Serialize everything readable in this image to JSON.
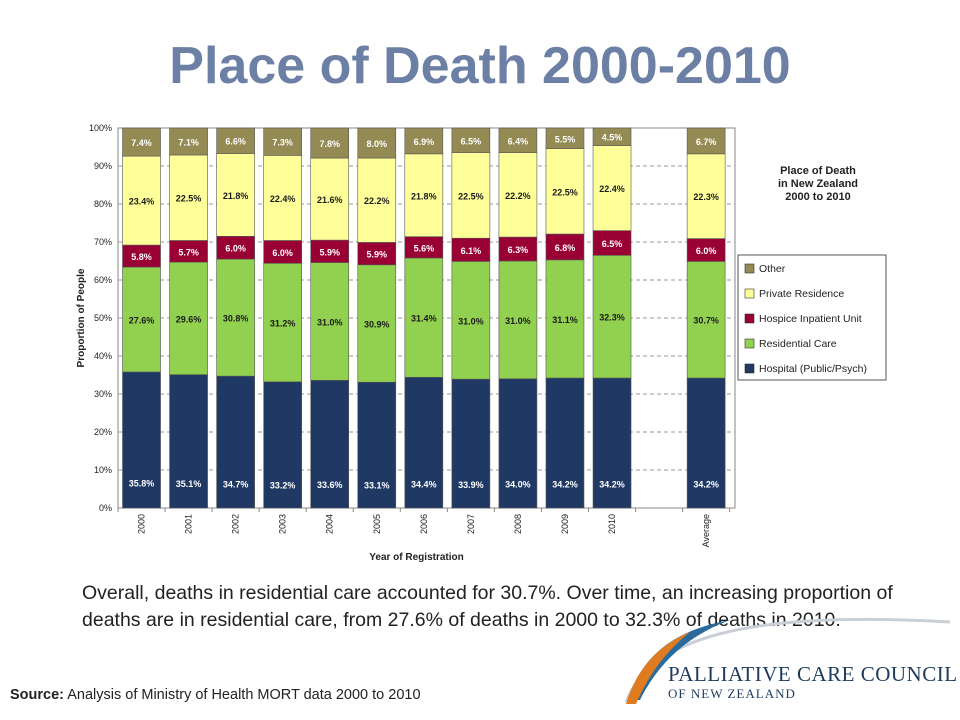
{
  "slide": {
    "title": "Place of Death 2000-2010",
    "caption": "Overall, deaths in residential care accounted for 30.7%. Over time, an increasing proportion of deaths are in residential care, from 27.6% of deaths in 2000 to 32.3% of deaths in 2010.",
    "source_label": "Source:",
    "source_text": " Analysis of Ministry of Health MORT data 2000 to 2010",
    "logo_line1": "PALLIATIVE CARE COUNCIL",
    "logo_line2": "OF NEW ZEALAND"
  },
  "chart_data": {
    "type": "bar",
    "stacked": true,
    "title": "Place of Death\nin New Zealand\n2000 to 2010",
    "xlabel": "Year of Registration",
    "ylabel": "Proportion of People",
    "ylim": [
      0,
      100
    ],
    "yticks": [
      "0%",
      "10%",
      "20%",
      "30%",
      "40%",
      "50%",
      "60%",
      "70%",
      "80%",
      "90%",
      "100%"
    ],
    "grid": true,
    "legend_position": "right",
    "categories": [
      "2000",
      "2001",
      "2002",
      "2003",
      "2004",
      "2005",
      "2006",
      "2007",
      "2008",
      "2009",
      "2010",
      "Average"
    ],
    "series": [
      {
        "name": "Hospital (Public/Psych)",
        "color": "#1f3864",
        "label_color": "#ffffff",
        "values": [
          35.8,
          35.1,
          34.7,
          33.2,
          33.6,
          33.1,
          34.4,
          33.9,
          34.0,
          34.2,
          34.2,
          34.2
        ],
        "labels": [
          "35.8%",
          "35.1%",
          "34.7%",
          "33.2%",
          "33.6%",
          "33.1%",
          "34.4%",
          "33.9%",
          "34.0%",
          "34.2%",
          "34.2%",
          "34.2%"
        ]
      },
      {
        "name": "Residential Care",
        "color": "#92d050",
        "label_color": "#1a1a1a",
        "values": [
          27.6,
          29.6,
          30.8,
          31.2,
          31.0,
          30.9,
          31.4,
          31.0,
          31.0,
          31.1,
          32.3,
          30.7
        ],
        "labels": [
          "27.6%",
          "29.6%",
          "30.8%",
          "31.2%",
          "31.0%",
          "30.9%",
          "31.4%",
          "31.0%",
          "31.0%",
          "31.1%",
          "32.3%",
          "30.7%"
        ]
      },
      {
        "name": "Hospice Inpatient Unit",
        "color": "#990033",
        "label_color": "#ffffff",
        "values": [
          5.8,
          5.7,
          6.0,
          6.0,
          5.9,
          5.9,
          5.6,
          6.1,
          6.3,
          6.8,
          6.5,
          6.0
        ],
        "labels": [
          "5.8%",
          "5.7%",
          "6.0%",
          "6.0%",
          "5.9%",
          "5.9%",
          "5.6%",
          "6.1%",
          "6.3%",
          "6.8%",
          "6.5%",
          "6.0%"
        ]
      },
      {
        "name": "Private Residence",
        "color": "#ffff99",
        "label_color": "#1a1a1a",
        "values": [
          23.4,
          22.5,
          21.8,
          22.4,
          21.6,
          22.2,
          21.8,
          22.5,
          22.2,
          22.5,
          22.4,
          22.3
        ],
        "labels": [
          "23.4%",
          "22.5%",
          "21.8%",
          "22.4%",
          "21.6%",
          "22.2%",
          "21.8%",
          "22.5%",
          "22.2%",
          "22.5%",
          "22.4%",
          "22.3%"
        ]
      },
      {
        "name": "Other",
        "color": "#948a54",
        "label_color": "#ffffff",
        "values": [
          7.4,
          7.1,
          6.6,
          7.3,
          7.8,
          8.0,
          6.9,
          6.5,
          6.4,
          5.5,
          4.5,
          6.7
        ],
        "labels": [
          "7.4%",
          "7.1%",
          "6.6%",
          "7.3%",
          "7.8%",
          "8.0%",
          "6.9%",
          "6.5%",
          "6.4%",
          "5.5%",
          "4.5%",
          "6.7%"
        ]
      }
    ]
  }
}
